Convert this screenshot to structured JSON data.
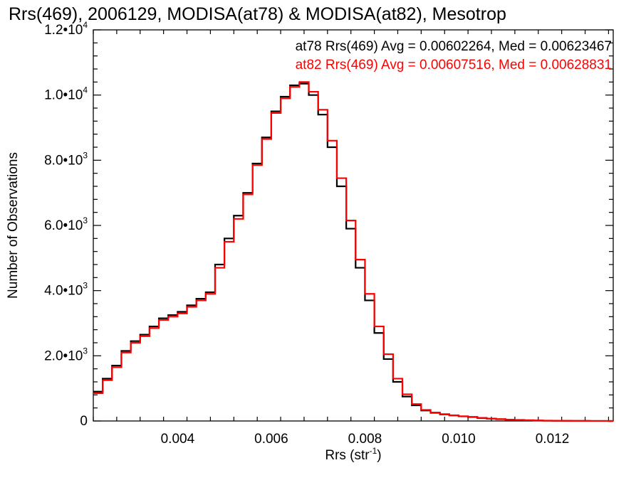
{
  "chart_data": {
    "type": "histogram-step",
    "title": "Rrs(469), 2006129, MODISA(at78) & MODISA(at82), Mesotrop",
    "xlabel_main": "Rrs (str",
    "xlabel_sup": "-1",
    "xlabel_close": ")",
    "ylabel": "Number of Observations",
    "xlim": [
      0.0022,
      0.0133
    ],
    "ylim": [
      0,
      12000
    ],
    "x_ticks": [
      {
        "value": 0.004,
        "label": "0.004"
      },
      {
        "value": 0.006,
        "label": "0.006"
      },
      {
        "value": 0.008,
        "label": "0.008"
      },
      {
        "value": 0.01,
        "label": "0.010"
      },
      {
        "value": 0.012,
        "label": "0.012"
      }
    ],
    "y_ticks": [
      {
        "value": 0,
        "mant": "0",
        "exp": ""
      },
      {
        "value": 2000,
        "mant": "2.0•10",
        "exp": "3"
      },
      {
        "value": 4000,
        "mant": "4.0•10",
        "exp": "3"
      },
      {
        "value": 6000,
        "mant": "6.0•10",
        "exp": "3"
      },
      {
        "value": 8000,
        "mant": "8.0•10",
        "exp": "3"
      },
      {
        "value": 10000,
        "mant": "1.0•10",
        "exp": "4"
      },
      {
        "value": 12000,
        "mant": "1.2•10",
        "exp": "4"
      }
    ],
    "annotations": [
      {
        "text": "at78 Rrs(469) Avg = 0.00602264, Med = 0.00623467",
        "color": "#000000"
      },
      {
        "text": "at82 Rrs(469) Avg = 0.00607516, Med = 0.00628831",
        "color": "#ff0000"
      }
    ],
    "series": [
      {
        "color": "#000000",
        "points": [
          [
            0.0022,
            900
          ],
          [
            0.0024,
            1300
          ],
          [
            0.0026,
            1700
          ],
          [
            0.0028,
            2150
          ],
          [
            0.003,
            2450
          ],
          [
            0.0032,
            2650
          ],
          [
            0.0034,
            2900
          ],
          [
            0.0036,
            3150
          ],
          [
            0.0038,
            3250
          ],
          [
            0.004,
            3350
          ],
          [
            0.0042,
            3550
          ],
          [
            0.0044,
            3750
          ],
          [
            0.0046,
            3950
          ],
          [
            0.0048,
            4800
          ],
          [
            0.005,
            5600
          ],
          [
            0.0052,
            6300
          ],
          [
            0.0054,
            7000
          ],
          [
            0.0056,
            7900
          ],
          [
            0.0058,
            8700
          ],
          [
            0.006,
            9500
          ],
          [
            0.0062,
            9950
          ],
          [
            0.0064,
            10300
          ],
          [
            0.0066,
            10350
          ],
          [
            0.0068,
            10000
          ],
          [
            0.007,
            9400
          ],
          [
            0.0072,
            8400
          ],
          [
            0.0074,
            7200
          ],
          [
            0.0076,
            5900
          ],
          [
            0.0078,
            4700
          ],
          [
            0.008,
            3700
          ],
          [
            0.0082,
            2700
          ],
          [
            0.0084,
            1900
          ],
          [
            0.0086,
            1200
          ],
          [
            0.0088,
            750
          ],
          [
            0.009,
            480
          ],
          [
            0.0092,
            320
          ],
          [
            0.0094,
            250
          ],
          [
            0.0096,
            200
          ],
          [
            0.0098,
            170
          ],
          [
            0.01,
            140
          ],
          [
            0.0102,
            120
          ],
          [
            0.0104,
            90
          ],
          [
            0.0106,
            70
          ],
          [
            0.0108,
            55
          ],
          [
            0.011,
            40
          ],
          [
            0.0112,
            30
          ],
          [
            0.0114,
            22
          ],
          [
            0.0116,
            15
          ],
          [
            0.0118,
            10
          ],
          [
            0.012,
            7
          ],
          [
            0.0122,
            5
          ],
          [
            0.0124,
            3
          ],
          [
            0.0126,
            2
          ],
          [
            0.0128,
            1
          ],
          [
            0.013,
            1
          ],
          [
            0.0132,
            0
          ]
        ]
      },
      {
        "color": "#ff0000",
        "points": [
          [
            0.0022,
            850
          ],
          [
            0.0024,
            1250
          ],
          [
            0.0026,
            1650
          ],
          [
            0.0028,
            2100
          ],
          [
            0.003,
            2400
          ],
          [
            0.0032,
            2600
          ],
          [
            0.0034,
            2850
          ],
          [
            0.0036,
            3100
          ],
          [
            0.0038,
            3200
          ],
          [
            0.004,
            3300
          ],
          [
            0.0042,
            3500
          ],
          [
            0.0044,
            3700
          ],
          [
            0.0046,
            3900
          ],
          [
            0.0048,
            4700
          ],
          [
            0.005,
            5500
          ],
          [
            0.0052,
            6200
          ],
          [
            0.0054,
            6950
          ],
          [
            0.0056,
            7850
          ],
          [
            0.0058,
            8650
          ],
          [
            0.006,
            9450
          ],
          [
            0.0062,
            9900
          ],
          [
            0.0064,
            10250
          ],
          [
            0.0066,
            10400
          ],
          [
            0.0068,
            10100
          ],
          [
            0.007,
            9550
          ],
          [
            0.0072,
            8600
          ],
          [
            0.0074,
            7450
          ],
          [
            0.0076,
            6150
          ],
          [
            0.0078,
            4950
          ],
          [
            0.008,
            3900
          ],
          [
            0.0082,
            2900
          ],
          [
            0.0084,
            2050
          ],
          [
            0.0086,
            1300
          ],
          [
            0.0088,
            820
          ],
          [
            0.009,
            520
          ],
          [
            0.0092,
            340
          ],
          [
            0.0094,
            260
          ],
          [
            0.0096,
            210
          ],
          [
            0.0098,
            175
          ],
          [
            0.01,
            145
          ],
          [
            0.0102,
            125
          ],
          [
            0.0104,
            95
          ],
          [
            0.0106,
            75
          ],
          [
            0.0108,
            58
          ],
          [
            0.011,
            42
          ],
          [
            0.0112,
            32
          ],
          [
            0.0114,
            23
          ],
          [
            0.0116,
            16
          ],
          [
            0.0118,
            11
          ],
          [
            0.012,
            8
          ],
          [
            0.0122,
            5
          ],
          [
            0.0124,
            3
          ],
          [
            0.0126,
            2
          ],
          [
            0.0128,
            1
          ],
          [
            0.013,
            1
          ],
          [
            0.0132,
            0
          ]
        ]
      }
    ]
  }
}
